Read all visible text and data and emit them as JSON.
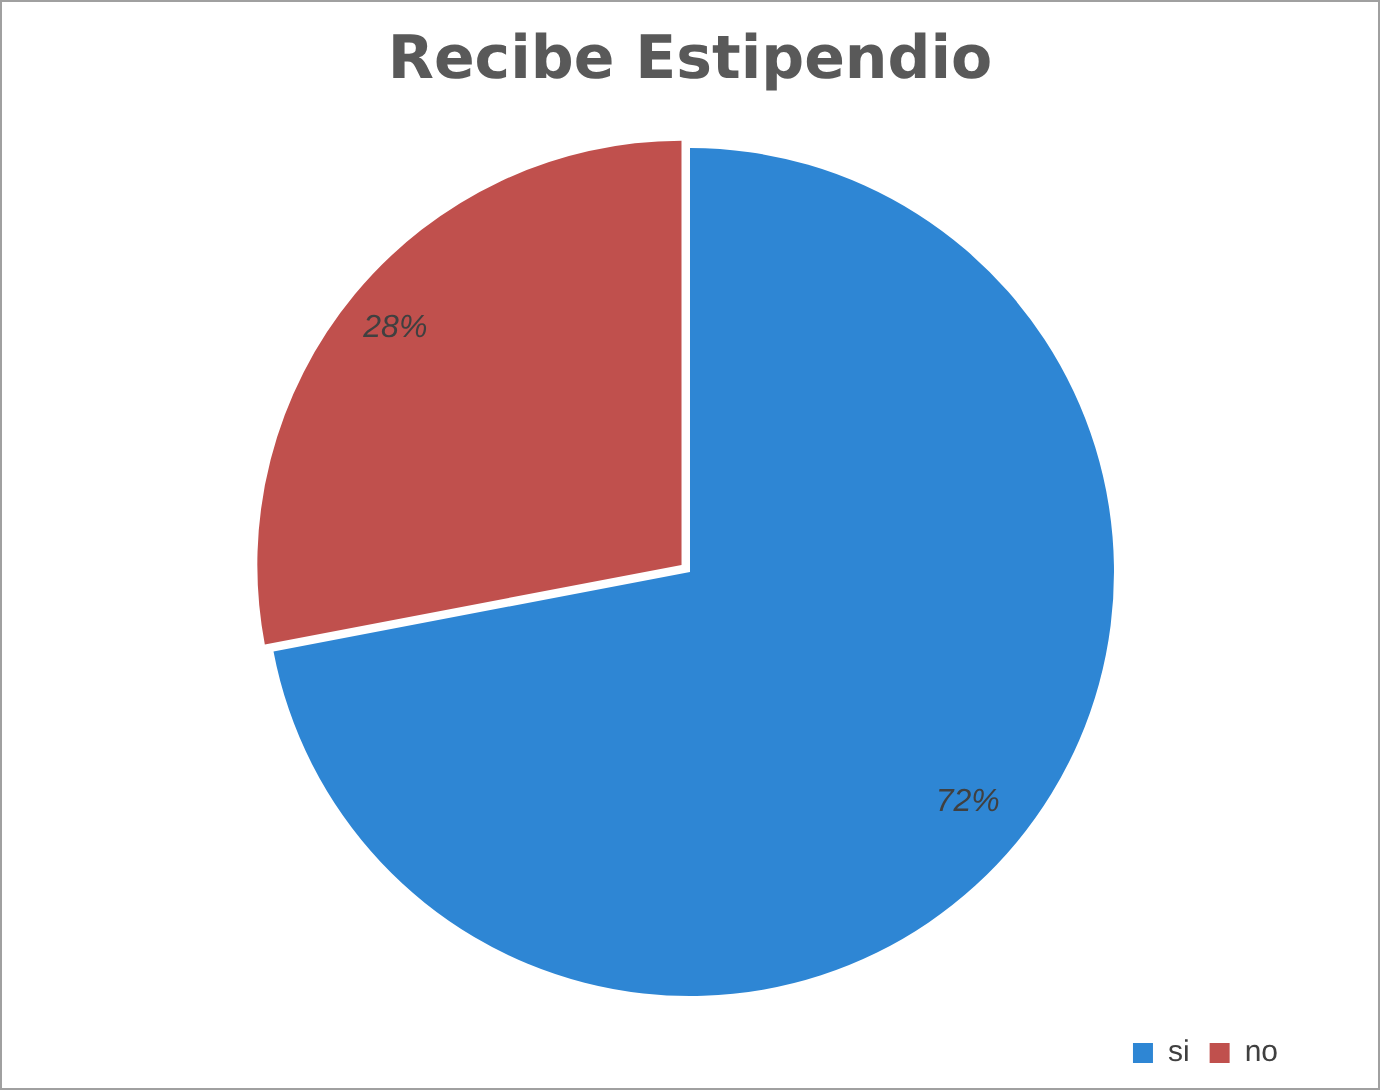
{
  "chart_data": {
    "type": "pie",
    "title": "Recibe Estipendio",
    "categories": [
      "si",
      "no"
    ],
    "values": [
      72,
      28
    ],
    "colors": [
      "#2e86d4",
      "#c0504d"
    ],
    "value_labels": [
      "72%",
      "28%"
    ],
    "legend": "bottom right"
  }
}
